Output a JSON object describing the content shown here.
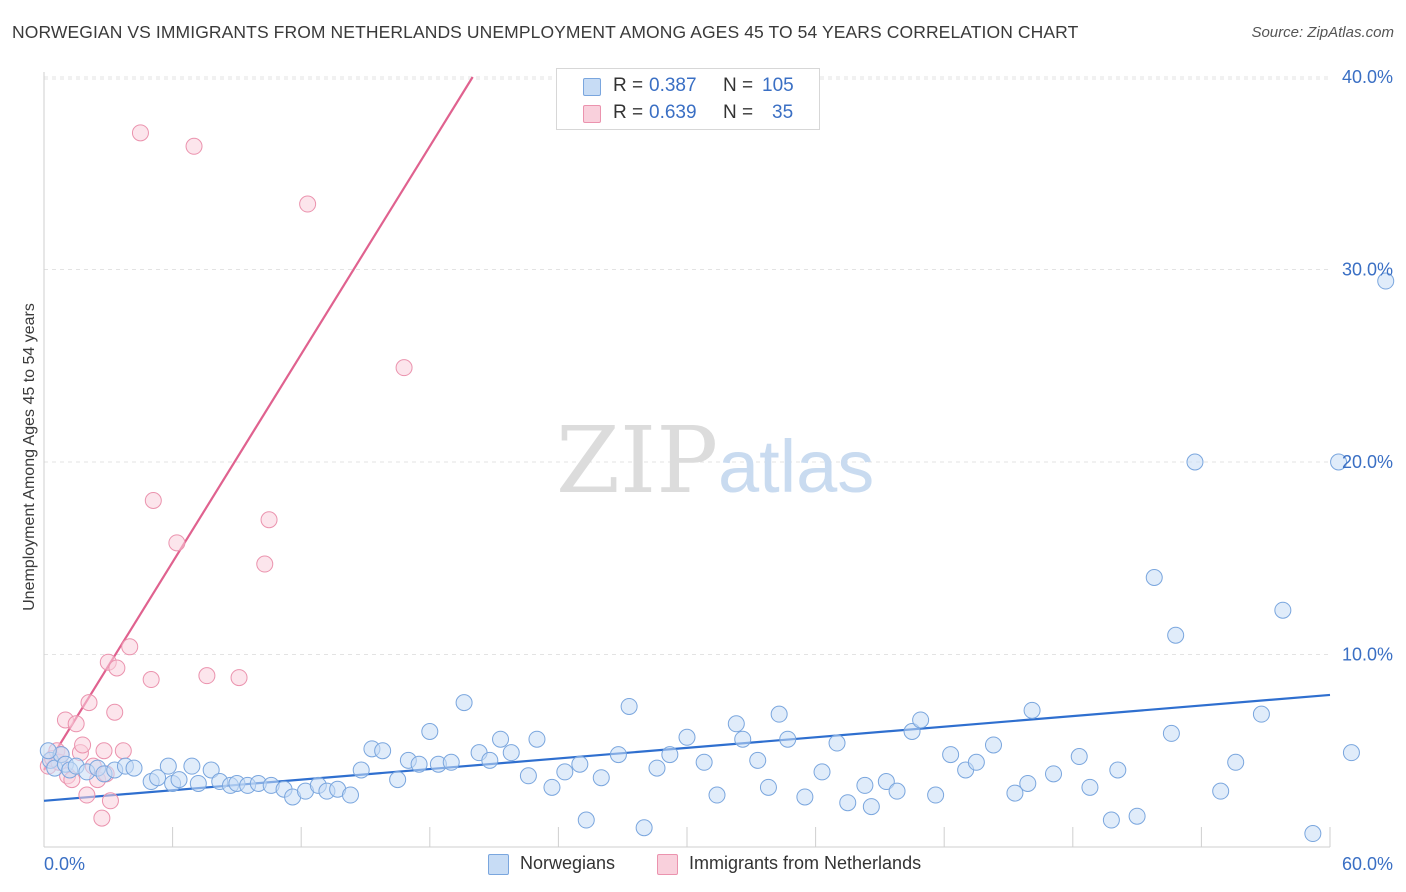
{
  "title": "NORWEGIAN VS IMMIGRANTS FROM NETHERLANDS UNEMPLOYMENT AMONG AGES 45 TO 54 YEARS CORRELATION CHART",
  "source": "Source: ZipAtlas.com",
  "watermark": {
    "zip": "ZIP",
    "atlas": "atlas"
  },
  "legend_top": [
    {
      "r_label": "R =",
      "r_value": "0.387",
      "n_label": "N =",
      "n_value": "105",
      "color": "#a8c8ef"
    },
    {
      "r_label": "R =",
      "r_value": "0.639",
      "n_label": "N =",
      "n_value": "35",
      "color": "#f6b8cb"
    }
  ],
  "legend_bottom": [
    {
      "label": "Norwegians",
      "color": "#a8c8ef"
    },
    {
      "label": "Immigrants from Netherlands",
      "color": "#f6b8cb"
    }
  ],
  "colors": {
    "blue_fill": "#c7dcf5",
    "blue_stroke": "#7aa6de",
    "blue_line": "#2f6fcf",
    "pink_fill": "#f9d0dc",
    "pink_stroke": "#eb93ae",
    "pink_line": "#e0628f",
    "grid": "#e3e3e3",
    "tick_label": "#3a6fc4"
  },
  "chart_data": {
    "type": "scatter",
    "title": "NORWEGIAN VS IMMIGRANTS FROM NETHERLANDS UNEMPLOYMENT AMONG AGES 45 TO 54 YEARS CORRELATION CHART",
    "xlabel": "",
    "ylabel": "Unemployment Among Ages 45 to 54 years",
    "xlim": [
      0,
      60
    ],
    "ylim": [
      0,
      42
    ],
    "x_tick_labels": [
      "0.0%",
      "60.0%"
    ],
    "y_ticks": [
      10,
      20,
      30,
      40
    ],
    "y_tick_labels": [
      "10.0%",
      "20.0%",
      "30.0%",
      "40.0%"
    ],
    "series": [
      {
        "name": "Norwegians",
        "r": 0.387,
        "n": 105,
        "trend": {
          "x": [
            0,
            60
          ],
          "y": [
            2.4,
            7.9
          ]
        },
        "points": [
          [
            0.3,
            4.5
          ],
          [
            0.5,
            4.1
          ],
          [
            0.8,
            4.8
          ],
          [
            1.0,
            4.3
          ],
          [
            1.2,
            4.0
          ],
          [
            1.5,
            4.2
          ],
          [
            2.0,
            3.9
          ],
          [
            2.5,
            4.1
          ],
          [
            2.8,
            3.8
          ],
          [
            3.3,
            4.0
          ],
          [
            3.8,
            4.2
          ],
          [
            4.2,
            4.1
          ],
          [
            5.0,
            3.4
          ],
          [
            5.3,
            3.6
          ],
          [
            5.8,
            4.2
          ],
          [
            6.0,
            3.3
          ],
          [
            6.3,
            3.5
          ],
          [
            6.9,
            4.2
          ],
          [
            7.2,
            3.3
          ],
          [
            7.8,
            4.0
          ],
          [
            8.2,
            3.4
          ],
          [
            8.7,
            3.2
          ],
          [
            9.0,
            3.3
          ],
          [
            9.5,
            3.2
          ],
          [
            10.0,
            3.3
          ],
          [
            10.6,
            3.2
          ],
          [
            11.2,
            3.0
          ],
          [
            11.6,
            2.6
          ],
          [
            12.2,
            2.9
          ],
          [
            12.8,
            3.2
          ],
          [
            13.2,
            2.9
          ],
          [
            13.7,
            3.0
          ],
          [
            14.3,
            2.7
          ],
          [
            14.8,
            4.0
          ],
          [
            15.3,
            5.1
          ],
          [
            15.8,
            5.0
          ],
          [
            16.5,
            3.5
          ],
          [
            17.0,
            4.5
          ],
          [
            17.5,
            4.3
          ],
          [
            18.0,
            6.0
          ],
          [
            18.4,
            4.3
          ],
          [
            19.0,
            4.4
          ],
          [
            19.6,
            7.5
          ],
          [
            20.3,
            4.9
          ],
          [
            20.8,
            4.5
          ],
          [
            21.3,
            5.6
          ],
          [
            21.8,
            4.9
          ],
          [
            22.6,
            3.7
          ],
          [
            23.0,
            5.6
          ],
          [
            23.7,
            3.1
          ],
          [
            24.3,
            3.9
          ],
          [
            25.0,
            4.3
          ],
          [
            25.3,
            1.4
          ],
          [
            26.0,
            3.6
          ],
          [
            26.8,
            4.8
          ],
          [
            27.3,
            7.3
          ],
          [
            28.0,
            1.0
          ],
          [
            28.6,
            4.1
          ],
          [
            29.2,
            4.8
          ],
          [
            30.0,
            5.7
          ],
          [
            30.8,
            4.4
          ],
          [
            31.4,
            2.7
          ],
          [
            32.3,
            6.4
          ],
          [
            32.6,
            5.6
          ],
          [
            33.3,
            4.5
          ],
          [
            33.8,
            3.1
          ],
          [
            34.3,
            6.9
          ],
          [
            34.7,
            5.6
          ],
          [
            35.5,
            2.6
          ],
          [
            36.3,
            3.9
          ],
          [
            37.0,
            5.4
          ],
          [
            37.5,
            2.3
          ],
          [
            38.3,
            3.2
          ],
          [
            38.6,
            2.1
          ],
          [
            39.3,
            3.4
          ],
          [
            39.8,
            2.9
          ],
          [
            40.5,
            6.0
          ],
          [
            40.9,
            6.6
          ],
          [
            41.6,
            2.7
          ],
          [
            42.3,
            4.8
          ],
          [
            43.0,
            4.0
          ],
          [
            43.5,
            4.4
          ],
          [
            44.3,
            5.3
          ],
          [
            45.3,
            2.8
          ],
          [
            45.9,
            3.3
          ],
          [
            46.1,
            7.1
          ],
          [
            47.1,
            3.8
          ],
          [
            48.3,
            4.7
          ],
          [
            48.8,
            3.1
          ],
          [
            49.8,
            1.4
          ],
          [
            50.1,
            4.0
          ],
          [
            51.0,
            1.6
          ],
          [
            51.8,
            14.0
          ],
          [
            52.6,
            5.9
          ],
          [
            52.8,
            11.0
          ],
          [
            53.7,
            20.0
          ],
          [
            54.9,
            2.9
          ],
          [
            55.6,
            4.4
          ],
          [
            56.8,
            6.9
          ],
          [
            57.8,
            12.3
          ],
          [
            59.2,
            0.7
          ],
          [
            60.4,
            20.0
          ],
          [
            61.0,
            4.9
          ],
          [
            62.6,
            29.4
          ],
          [
            0.2,
            5.0
          ]
        ]
      },
      {
        "name": "Immigrants from Netherlands",
        "r": 0.639,
        "n": 35,
        "trend": {
          "x": [
            0,
            20
          ],
          "y": [
            4.0,
            40.0
          ]
        },
        "points": [
          [
            0.2,
            4.2
          ],
          [
            0.4,
            4.6
          ],
          [
            0.6,
            5.0
          ],
          [
            0.7,
            4.4
          ],
          [
            0.8,
            4.8
          ],
          [
            1.0,
            6.6
          ],
          [
            1.1,
            3.7
          ],
          [
            1.3,
            3.5
          ],
          [
            1.5,
            6.4
          ],
          [
            1.7,
            4.9
          ],
          [
            1.8,
            5.3
          ],
          [
            2.0,
            2.7
          ],
          [
            2.1,
            7.5
          ],
          [
            2.3,
            4.2
          ],
          [
            2.5,
            3.5
          ],
          [
            2.7,
            1.5
          ],
          [
            2.8,
            5.0
          ],
          [
            2.9,
            3.8
          ],
          [
            3.0,
            9.6
          ],
          [
            3.1,
            2.4
          ],
          [
            3.3,
            7.0
          ],
          [
            3.4,
            9.3
          ],
          [
            3.7,
            5.0
          ],
          [
            4.0,
            10.4
          ],
          [
            4.5,
            37.1
          ],
          [
            5.0,
            8.7
          ],
          [
            5.1,
            18.0
          ],
          [
            6.2,
            15.8
          ],
          [
            7.0,
            36.4
          ],
          [
            7.6,
            8.9
          ],
          [
            9.1,
            8.8
          ],
          [
            10.3,
            14.7
          ],
          [
            10.5,
            17.0
          ],
          [
            12.3,
            33.4
          ],
          [
            16.8,
            24.9
          ]
        ]
      }
    ]
  }
}
